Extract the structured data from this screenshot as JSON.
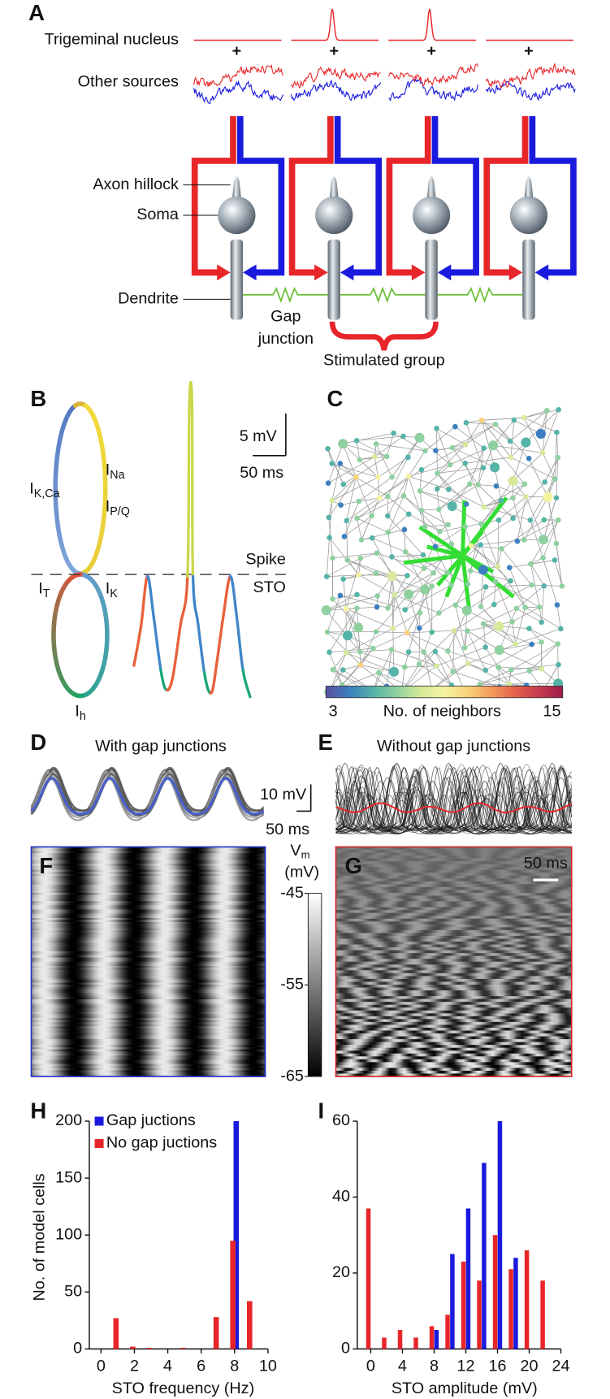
{
  "panel_a": {
    "letter": "A",
    "trigeminal": "Trigeminal nucleus",
    "other": "Other sources",
    "plus": "+",
    "axon_hillock": "Axon hillock",
    "soma": "Soma",
    "dendrite": "Dendrite",
    "gap_junction": [
      "Gap",
      "junction"
    ],
    "stimulated_group": "Stimulated group"
  },
  "panel_b": {
    "letter": "B",
    "currents": [
      {
        "main": "I",
        "sub": "K,Ca"
      },
      {
        "main": "I",
        "sub": "Na"
      },
      {
        "main": "I",
        "sub": "P/Q"
      },
      {
        "main": "I",
        "sub": "T"
      },
      {
        "main": "I",
        "sub": "K"
      },
      {
        "main": "I",
        "sub": "h"
      }
    ],
    "scale_v": "5 mV",
    "scale_t": "50 ms",
    "spike": "Spike",
    "sto": "STO"
  },
  "panel_c": {
    "letter": "C",
    "colorbar": {
      "label": "No. of neighbors",
      "ticks": [
        3,
        15
      ],
      "colors": [
        "#5b4ea0",
        "#3c7fc0",
        "#55b3a8",
        "#8fd0a0",
        "#d5ea9a",
        "#f6f3a0",
        "#f7d27a",
        "#f29b5b",
        "#e4604b",
        "#c63b4e",
        "#9c1b47"
      ]
    }
  },
  "panel_d": {
    "letter": "D",
    "title": "With gap junctions",
    "title_color": "#1a1adf",
    "scale_v": "10 mV",
    "scale_t": "50 ms"
  },
  "panel_e": {
    "letter": "E",
    "title": "Without gap junctions",
    "title_color": "#e8262a"
  },
  "panel_f": {
    "letter": "F",
    "colorbar": {
      "label": {
        "main": "V",
        "sub": "m"
      },
      "unit": "(mV)",
      "ticks": [
        -45,
        -55,
        -65
      ]
    }
  },
  "panel_g": {
    "letter": "G",
    "scale_t": "50 ms"
  },
  "chart_data": [
    {
      "type": "bar",
      "panel_label": "H",
      "xlabel": "STO frequency (Hz)",
      "ylabel": "No. of model cells",
      "xlim": [
        -0.7,
        10
      ],
      "xticks": [
        0,
        2,
        4,
        6,
        8,
        10
      ],
      "ylim": [
        0,
        200
      ],
      "yticks": [
        0,
        50,
        100,
        150,
        200
      ],
      "legend": "upper-left",
      "series": [
        {
          "name": "Gap juctions",
          "color": "#1a1adf",
          "x": [
            8.1
          ],
          "values": [
            200
          ]
        },
        {
          "name": "No gap juctions",
          "color": "#e8262a",
          "x": [
            0.9,
            1.9,
            2.9,
            4.9,
            6.9,
            7.9,
            8.9
          ],
          "values": [
            27,
            2,
            1,
            1,
            28,
            95,
            42
          ]
        }
      ]
    },
    {
      "type": "bar",
      "panel_label": "I",
      "xlabel": "STO amplitude (mV)",
      "xlim": [
        -1.7,
        24
      ],
      "xticks": [
        0,
        4,
        8,
        12,
        16,
        20,
        24
      ],
      "ylim": [
        0,
        60
      ],
      "yticks": [
        0,
        20,
        40,
        60
      ],
      "series": [
        {
          "color": "#1a1adf",
          "x": [
            8.3,
            10.3,
            12.3,
            14.3,
            16.3,
            18.3
          ],
          "values": [
            5,
            25,
            37,
            49,
            60,
            24
          ]
        },
        {
          "color": "#e8262a",
          "x": [
            -0.3,
            1.7,
            3.7,
            5.7,
            7.7,
            9.7,
            11.7,
            13.7,
            15.7,
            17.7,
            19.7,
            21.7
          ],
          "values": [
            37,
            3,
            5,
            3,
            6,
            9,
            23,
            18,
            30,
            21,
            26,
            18
          ]
        }
      ]
    }
  ]
}
